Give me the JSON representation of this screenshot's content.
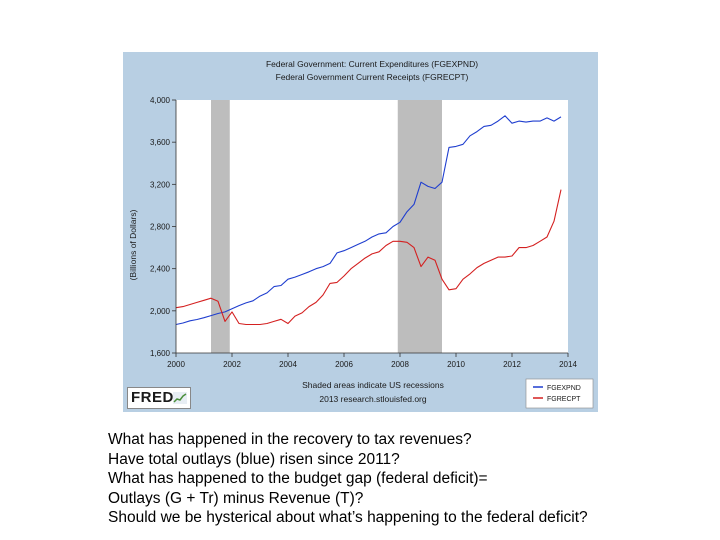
{
  "chart_data": {
    "type": "line",
    "title_lines": [
      "Federal Government: Current Expenditures (FGEXPND)",
      "Federal Government Current Receipts (FGRECPT)"
    ],
    "ylabel": "(Billions of Dollars)",
    "xlim": [
      2000,
      2014
    ],
    "ylim": [
      1600,
      4000
    ],
    "x_ticks": [
      2000,
      2002,
      2004,
      2006,
      2008,
      2010,
      2012,
      2014
    ],
    "x_tick_labels": [
      "2000",
      "2002",
      "2004",
      "2006",
      "2008",
      "2010",
      "2012",
      "2014"
    ],
    "y_ticks": [
      1600,
      2000,
      2400,
      2800,
      3200,
      3600,
      4000
    ],
    "y_tick_labels": [
      "1,600",
      "2,000",
      "2,400",
      "2,800",
      "3,200",
      "3,600",
      "4,000"
    ],
    "recessions": [
      [
        2001.25,
        2001.92
      ],
      [
        2007.92,
        2009.5
      ]
    ],
    "series": [
      {
        "name": "FGEXPND",
        "color": "#1f3ecf",
        "points": [
          [
            2000.0,
            1870
          ],
          [
            2000.25,
            1885
          ],
          [
            2000.5,
            1905
          ],
          [
            2000.75,
            1918
          ],
          [
            2001.0,
            1935
          ],
          [
            2001.25,
            1955
          ],
          [
            2001.5,
            1975
          ],
          [
            2001.75,
            1990
          ],
          [
            2002.0,
            2020
          ],
          [
            2002.25,
            2050
          ],
          [
            2002.5,
            2075
          ],
          [
            2002.75,
            2095
          ],
          [
            2003.0,
            2140
          ],
          [
            2003.25,
            2170
          ],
          [
            2003.5,
            2230
          ],
          [
            2003.75,
            2240
          ],
          [
            2004.0,
            2300
          ],
          [
            2004.25,
            2320
          ],
          [
            2004.5,
            2345
          ],
          [
            2004.75,
            2370
          ],
          [
            2005.0,
            2400
          ],
          [
            2005.25,
            2420
          ],
          [
            2005.5,
            2450
          ],
          [
            2005.75,
            2550
          ],
          [
            2006.0,
            2570
          ],
          [
            2006.25,
            2600
          ],
          [
            2006.5,
            2630
          ],
          [
            2006.75,
            2660
          ],
          [
            2007.0,
            2700
          ],
          [
            2007.25,
            2730
          ],
          [
            2007.5,
            2740
          ],
          [
            2007.75,
            2800
          ],
          [
            2008.0,
            2840
          ],
          [
            2008.25,
            2940
          ],
          [
            2008.5,
            3010
          ],
          [
            2008.75,
            3220
          ],
          [
            2009.0,
            3180
          ],
          [
            2009.25,
            3160
          ],
          [
            2009.5,
            3220
          ],
          [
            2009.75,
            3550
          ],
          [
            2010.0,
            3560
          ],
          [
            2010.25,
            3580
          ],
          [
            2010.5,
            3660
          ],
          [
            2010.75,
            3700
          ],
          [
            2011.0,
            3750
          ],
          [
            2011.25,
            3760
          ],
          [
            2011.5,
            3800
          ],
          [
            2011.75,
            3850
          ],
          [
            2012.0,
            3780
          ],
          [
            2012.25,
            3800
          ],
          [
            2012.5,
            3790
          ],
          [
            2012.75,
            3800
          ],
          [
            2013.0,
            3800
          ],
          [
            2013.25,
            3830
          ],
          [
            2013.5,
            3800
          ],
          [
            2013.75,
            3840
          ]
        ]
      },
      {
        "name": "FGRECPT",
        "color": "#d42020",
        "points": [
          [
            2000.0,
            2030
          ],
          [
            2000.25,
            2040
          ],
          [
            2000.5,
            2060
          ],
          [
            2000.75,
            2080
          ],
          [
            2001.0,
            2100
          ],
          [
            2001.25,
            2120
          ],
          [
            2001.5,
            2090
          ],
          [
            2001.75,
            1900
          ],
          [
            2002.0,
            1990
          ],
          [
            2002.25,
            1880
          ],
          [
            2002.5,
            1870
          ],
          [
            2002.75,
            1870
          ],
          [
            2003.0,
            1870
          ],
          [
            2003.25,
            1880
          ],
          [
            2003.5,
            1900
          ],
          [
            2003.75,
            1920
          ],
          [
            2004.0,
            1880
          ],
          [
            2004.25,
            1950
          ],
          [
            2004.5,
            1980
          ],
          [
            2004.75,
            2040
          ],
          [
            2005.0,
            2080
          ],
          [
            2005.25,
            2150
          ],
          [
            2005.5,
            2260
          ],
          [
            2005.75,
            2270
          ],
          [
            2006.0,
            2330
          ],
          [
            2006.25,
            2400
          ],
          [
            2006.5,
            2450
          ],
          [
            2006.75,
            2500
          ],
          [
            2007.0,
            2540
          ],
          [
            2007.25,
            2560
          ],
          [
            2007.5,
            2620
          ],
          [
            2007.75,
            2660
          ],
          [
            2008.0,
            2660
          ],
          [
            2008.25,
            2650
          ],
          [
            2008.5,
            2600
          ],
          [
            2008.75,
            2420
          ],
          [
            2009.0,
            2510
          ],
          [
            2009.25,
            2480
          ],
          [
            2009.5,
            2300
          ],
          [
            2009.75,
            2200
          ],
          [
            2010.0,
            2210
          ],
          [
            2010.25,
            2300
          ],
          [
            2010.5,
            2350
          ],
          [
            2010.75,
            2410
          ],
          [
            2011.0,
            2450
          ],
          [
            2011.25,
            2480
          ],
          [
            2011.5,
            2510
          ],
          [
            2011.75,
            2510
          ],
          [
            2012.0,
            2520
          ],
          [
            2012.25,
            2600
          ],
          [
            2012.5,
            2600
          ],
          [
            2012.75,
            2620
          ],
          [
            2013.0,
            2660
          ],
          [
            2013.25,
            2700
          ],
          [
            2013.5,
            2850
          ],
          [
            2013.75,
            3150
          ]
        ]
      }
    ],
    "footer_lines": [
      "Shaded areas indicate US recessions",
      "2013 research.stlouisfed.org"
    ],
    "legend_position": "bottom-right",
    "colors": {
      "frame_bg": "#b8cfe3",
      "plot_bg": "#ffffff",
      "recession_shade": "#bdbdbd"
    }
  },
  "logo": {
    "text": "FRED"
  },
  "questions": [
    "What has happened in the recovery to tax revenues?",
    "Have total outlays (blue) risen since 2011?",
    "What has happened to the budget gap (federal deficit)=",
    "Outlays (G + Tr) minus Revenue (T)?",
    "Should we be hysterical about what’s happening to the federal deficit?"
  ]
}
